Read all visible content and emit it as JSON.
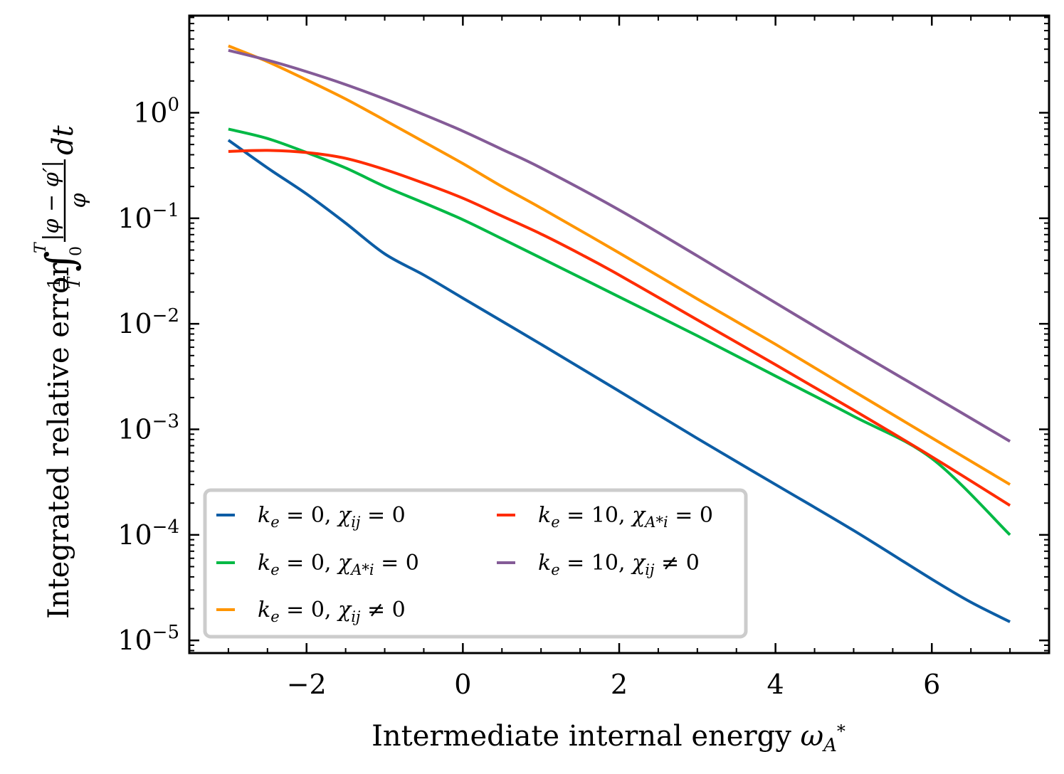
{
  "chart_data": {
    "type": "line",
    "title": "",
    "xlabel": "Intermediate internal energy ω_{A*}",
    "ylabel": "Integrated relative error (1/T)∫₀ᵀ |φ−φ′|/φ dt",
    "xlim": [
      -3.5,
      7.5
    ],
    "ylim_log10": [
      -5.12,
      0.92
    ],
    "yscale": "log",
    "grid": false,
    "legend_position": "lower-left",
    "legend_columns": 2,
    "x_ticks": [
      -2,
      0,
      2,
      4,
      6
    ],
    "x_tick_labels": [
      "−2",
      "0",
      "2",
      "4",
      "6"
    ],
    "y_tick_exponents": [
      0,
      -1,
      -2,
      -3,
      -4,
      -5
    ],
    "y_tick_labels": [
      {
        "base": "10",
        "exp": "0"
      },
      {
        "base": "10",
        "exp": "−1"
      },
      {
        "base": "10",
        "exp": "−2"
      },
      {
        "base": "10",
        "exp": "−3"
      },
      {
        "base": "10",
        "exp": "−4"
      },
      {
        "base": "10",
        "exp": "−5"
      }
    ],
    "series": [
      {
        "name": "k_e = 0, χ_ij = 0",
        "legend": {
          "k": "k",
          "ksub": "e",
          "eq1": " = 0, ",
          "chi": "χ",
          "chisub": "ij",
          "tail": " = 0"
        },
        "color": "#0C5DA5",
        "x": [
          -3,
          -2.5,
          -2,
          -1.5,
          -1,
          -0.5,
          0,
          1,
          2,
          3,
          4,
          5,
          6,
          6.5,
          7
        ],
        "y": [
          0.55,
          0.3,
          0.17,
          0.09,
          0.046,
          0.029,
          0.0175,
          0.0064,
          0.0023,
          0.00082,
          0.0003,
          0.00011,
          3.8e-05,
          2.3e-05,
          1.5e-05
        ]
      },
      {
        "name": "k_e = 0, χ_A*i = 0",
        "legend": {
          "k": "k",
          "ksub": "e",
          "eq1": " = 0, ",
          "chi": "χ",
          "chisub": "A*i",
          "tail": " = 0"
        },
        "color": "#00B945",
        "x": [
          -3,
          -2.5,
          -2,
          -1.5,
          -1,
          -0.5,
          0,
          0.5,
          1,
          2,
          3,
          4,
          5,
          6,
          7
        ],
        "y": [
          0.7,
          0.57,
          0.42,
          0.3,
          0.2,
          0.14,
          0.097,
          0.064,
          0.042,
          0.018,
          0.0077,
          0.0032,
          0.00133,
          0.00053,
          0.0001
        ]
      },
      {
        "name": "k_e = 0, χ_ij ≠ 0",
        "legend": {
          "k": "k",
          "ksub": "e",
          "eq1": " = 0, ",
          "chi": "χ",
          "chisub": "ij",
          "tail": " ≠ 0"
        },
        "color": "#FF9500",
        "x": [
          -3,
          -2.5,
          -2,
          -1.5,
          -1,
          -0.5,
          0,
          0.5,
          1,
          2,
          3,
          4,
          5,
          6,
          7
        ],
        "y": [
          4.3,
          3.05,
          2.05,
          1.35,
          0.85,
          0.53,
          0.33,
          0.2,
          0.125,
          0.047,
          0.0172,
          0.0064,
          0.0023,
          0.00083,
          0.0003
        ]
      },
      {
        "name": "k_e = 10, χ_A*i = 0",
        "legend": {
          "k": "k",
          "ksub": "e",
          "eq1": " = 10, ",
          "chi": "χ",
          "chisub": "A*i",
          "tail": " = 0"
        },
        "color": "#FF2C00",
        "x": [
          -3,
          -2.5,
          -2,
          -1.5,
          -1,
          -0.5,
          0,
          0.5,
          1,
          1.5,
          2,
          3,
          4,
          5,
          6,
          7
        ],
        "y": [
          0.43,
          0.44,
          0.42,
          0.37,
          0.29,
          0.215,
          0.155,
          0.105,
          0.071,
          0.046,
          0.029,
          0.0109,
          0.0041,
          0.00152,
          0.00055,
          0.00019
        ]
      },
      {
        "name": "k_e = 10, χ_ij ≠ 0",
        "legend": {
          "k": "k",
          "ksub": "e",
          "eq1": " = 10, ",
          "chi": "χ",
          "chisub": "ij",
          "tail": " ≠ 0"
        },
        "color": "#845B97",
        "x": [
          -3,
          -2.5,
          -2,
          -1.5,
          -1,
          -0.5,
          0,
          0.5,
          1,
          2,
          3,
          4,
          5,
          6,
          7
        ],
        "y": [
          3.9,
          3.15,
          2.45,
          1.85,
          1.35,
          0.96,
          0.67,
          0.45,
          0.3,
          0.12,
          0.044,
          0.0158,
          0.0057,
          0.0021,
          0.00077
        ]
      }
    ]
  }
}
